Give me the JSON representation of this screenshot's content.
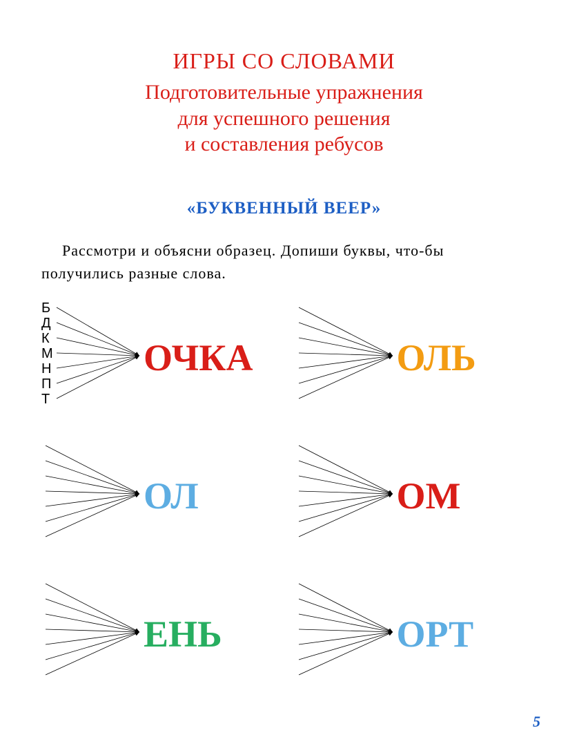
{
  "title": "ИГРЫ СО СЛОВАМИ",
  "subtitle_line1": "Подготовительные упражнения",
  "subtitle_line2": "для успешного решения",
  "subtitle_line3": "и составления ребусов",
  "section_title": "«БУКВЕННЫЙ ВЕЕР»",
  "instruction": "Рассмотри и объясни образец. Допиши буквы, что-бы получились разные слова.",
  "colors": {
    "red": "#d91e18",
    "blue": "#1e5fc4",
    "orange": "#f39c12",
    "cyan": "#5dade2",
    "green": "#27ae60",
    "black": "#000000"
  },
  "fans": [
    {
      "word": "ОЧКА",
      "color": "#d91e18",
      "letters": [
        "Б",
        "Д",
        "К",
        "М",
        "Н",
        "П",
        "Т"
      ],
      "show_letters": true,
      "arrow_count": 7
    },
    {
      "word": "ОЛЬ",
      "color": "#f39c12",
      "letters": [],
      "show_letters": false,
      "arrow_count": 7
    },
    {
      "word": "ОЛ",
      "color": "#5dade2",
      "letters": [],
      "show_letters": false,
      "arrow_count": 7
    },
    {
      "word": "ОМ",
      "color": "#d91e18",
      "letters": [],
      "show_letters": false,
      "arrow_count": 7
    },
    {
      "word": "ЕНЬ",
      "color": "#27ae60",
      "letters": [],
      "show_letters": false,
      "arrow_count": 7
    },
    {
      "word": "ОРТ",
      "color": "#5dade2",
      "letters": [],
      "show_letters": false,
      "arrow_count": 7
    }
  ],
  "page_number": "5"
}
